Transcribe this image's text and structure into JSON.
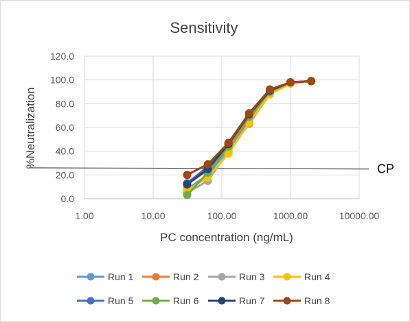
{
  "chart_data": {
    "type": "line",
    "title": "Sensitivity",
    "xlabel": "PC concentration (ng/mL)",
    "ylabel": "%Neutralization",
    "x_scale": "log",
    "xlim": [
      1,
      10000
    ],
    "ylim": [
      0,
      120
    ],
    "x_ticks": [
      "1.00",
      "10.00",
      "100.00",
      "1000.00",
      "10000.00"
    ],
    "y_ticks": [
      "0.0",
      "20.0",
      "40.0",
      "60.0",
      "80.0",
      "100.0",
      "120.0"
    ],
    "grid": true,
    "legend_position": "bottom",
    "x": [
      31.25,
      62.5,
      125,
      250,
      500,
      1000,
      2000
    ],
    "series": [
      {
        "name": "Run 1",
        "color": "#5B9BD5",
        "values": [
          8,
          20,
          42,
          65,
          89,
          98,
          99
        ]
      },
      {
        "name": "Run 2",
        "color": "#ED7D31",
        "values": [
          12,
          24,
          43,
          68,
          90,
          98,
          99
        ]
      },
      {
        "name": "Run 3",
        "color": "#A5A5A5",
        "values": [
          5,
          15,
          40,
          63,
          88,
          97,
          99
        ]
      },
      {
        "name": "Run 4",
        "color": "#FFC000",
        "values": [
          7,
          18,
          38,
          64,
          88,
          97,
          99
        ]
      },
      {
        "name": "Run 5",
        "color": "#4472C4",
        "values": [
          13,
          27,
          46,
          70,
          91,
          98,
          99
        ]
      },
      {
        "name": "Run 6",
        "color": "#70AD47",
        "values": [
          3,
          22,
          44,
          69,
          90,
          98,
          99
        ]
      },
      {
        "name": "Run 7",
        "color": "#264478",
        "values": [
          12,
          25,
          46,
          71,
          91,
          98,
          99
        ]
      },
      {
        "name": "Run 8",
        "color": "#9E480E",
        "values": [
          20,
          29,
          47,
          72,
          92,
          98,
          99
        ]
      }
    ],
    "cutpoint": {
      "label": "CP",
      "y_start": 26,
      "y_end": 25
    }
  }
}
